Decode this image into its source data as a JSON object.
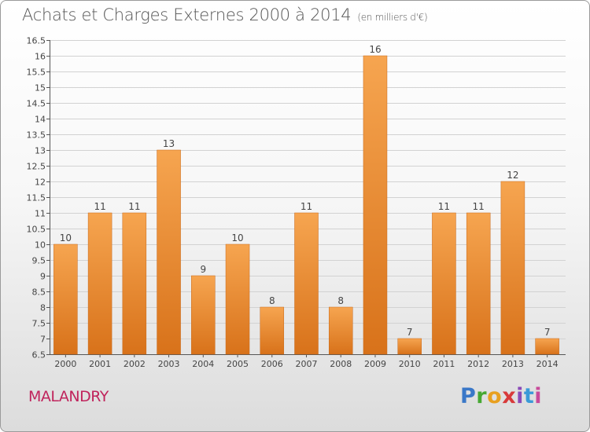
{
  "header": {
    "title": "Achats et Charges Externes 2000 à 2014",
    "subtitle": "(en milliers d'€)"
  },
  "footer": {
    "commune": "MALANDRY",
    "logo_letters": [
      {
        "char": "P",
        "color": "#3a78c8"
      },
      {
        "char": "r",
        "color": "#46a832"
      },
      {
        "char": "o",
        "color": "#e8a020"
      },
      {
        "char": "x",
        "color": "#d83a3a"
      },
      {
        "char": "i",
        "color": "#8a4ab8"
      },
      {
        "char": "t",
        "color": "#3a9ad8"
      },
      {
        "char": "i",
        "color": "#c84a9a"
      }
    ]
  },
  "chart_data": {
    "type": "bar",
    "categories": [
      "2000",
      "2001",
      "2002",
      "2003",
      "2004",
      "2005",
      "2006",
      "2007",
      "2008",
      "2009",
      "2010",
      "2011",
      "2012",
      "2013",
      "2014"
    ],
    "values": [
      10,
      11,
      11,
      13,
      9,
      10,
      8,
      11,
      8,
      16,
      7,
      11,
      11,
      12,
      7
    ],
    "title": "Achats et Charges Externes 2000 à 2014",
    "ylim": [
      6.5,
      16.5
    ],
    "yticks": [
      "6.5",
      "7",
      "7.5",
      "8",
      "8.5",
      "9",
      "9.5",
      "10",
      "10.5",
      "11",
      "11.5",
      "12",
      "12.5",
      "13",
      "13.5",
      "14",
      "14.5",
      "15",
      "15.5",
      "16",
      "16.5"
    ],
    "bar_color_top": "#f6a550",
    "bar_color_bottom": "#d8721a",
    "grid": true
  }
}
